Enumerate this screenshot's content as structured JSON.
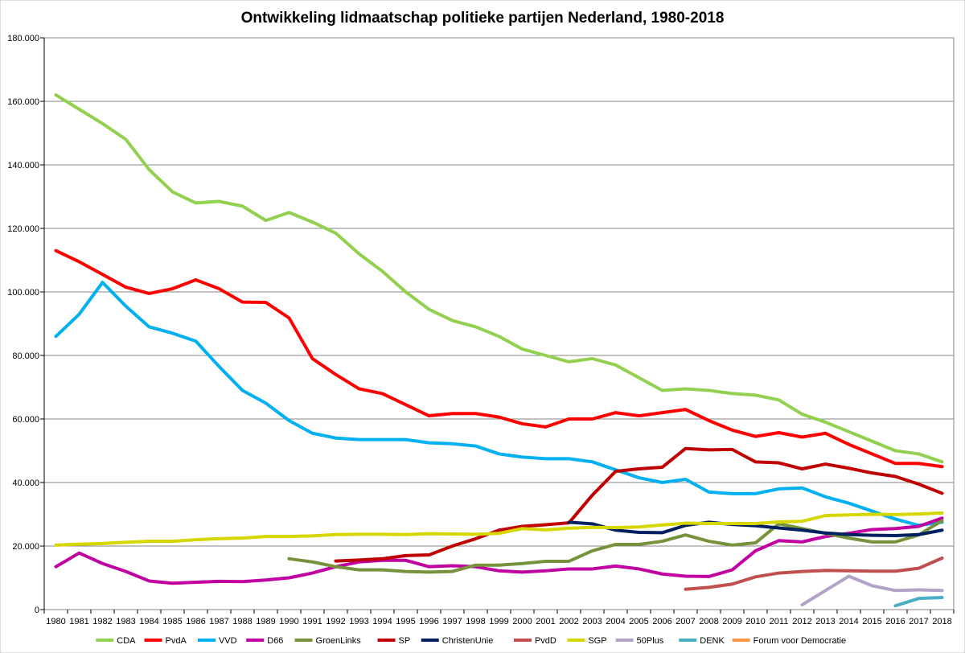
{
  "chart_data": {
    "type": "line",
    "title": "Ontwikkeling lidmaatschap politieke partijen Nederland, 1980-2018",
    "xlabel": "",
    "ylabel": "",
    "ylim": [
      0,
      180000
    ],
    "y_ticks": [
      0,
      20000,
      40000,
      60000,
      80000,
      100000,
      120000,
      140000,
      160000,
      180000
    ],
    "y_tick_labels": [
      "0",
      "20.000",
      "40.000",
      "60.000",
      "80.000",
      "100.000",
      "120.000",
      "140.000",
      "160.000",
      "180.000"
    ],
    "grid": true,
    "legend_position": "bottom",
    "x": [
      "1980",
      "1981",
      "1982",
      "1983",
      "1984",
      "1985",
      "1986",
      "1987",
      "1988",
      "1989",
      "1990",
      "1991",
      "1992",
      "1993",
      "1994",
      "1995",
      "1996",
      "1997",
      "1998",
      "1999",
      "2000",
      "2001",
      "2002",
      "2003",
      "2004",
      "2005",
      "2006",
      "2007",
      "2008",
      "2009",
      "2010",
      "2011",
      "2012",
      "2013",
      "2014",
      "2015",
      "2016",
      "2017",
      "2018"
    ],
    "series": [
      {
        "name": "CDA",
        "color": "#92D050",
        "values": [
          162000,
          157500,
          153000,
          148000,
          138500,
          131500,
          128000,
          128500,
          127000,
          122500,
          125000,
          122000,
          118500,
          112000,
          106500,
          100000,
          94500,
          91000,
          89000,
          86000,
          82000,
          80000,
          78000,
          79000,
          77000,
          73000,
          69000,
          69500,
          69000,
          68000,
          67500,
          66000,
          61500,
          59000,
          56000,
          53000,
          50000,
          49000,
          46500
        ]
      },
      {
        "name": "PvdA",
        "color": "#FF0000",
        "values": [
          113000,
          109500,
          105500,
          101500,
          99500,
          101000,
          103800,
          101000,
          96800,
          96700,
          91800,
          79000,
          74000,
          69500,
          68000,
          64500,
          61000,
          61700,
          61700,
          60600,
          58500,
          57500,
          60000,
          60000,
          62000,
          61000,
          62000,
          63000,
          59500,
          56500,
          54500,
          55700,
          54300,
          55500,
          52000,
          49000,
          46000,
          46000,
          45000
        ]
      },
      {
        "name": "VVD",
        "color": "#00B0F0",
        "values": [
          86000,
          93000,
          103000,
          95500,
          89000,
          87000,
          84500,
          76500,
          69000,
          65000,
          59500,
          55500,
          54000,
          53500,
          53500,
          53500,
          52500,
          52200,
          51500,
          49000,
          48000,
          47500,
          47500,
          46500,
          44000,
          41500,
          40000,
          41000,
          37000,
          36500,
          36500,
          38000,
          38300,
          35500,
          33500,
          31000,
          28500,
          26500,
          27500
        ]
      },
      {
        "name": "D66",
        "color": "#C000A0",
        "values": [
          13500,
          17800,
          14500,
          12000,
          9000,
          8300,
          8600,
          8900,
          8800,
          9300,
          10000,
          11500,
          13500,
          15000,
          15500,
          15500,
          13500,
          13800,
          13500,
          12200,
          11800,
          12200,
          12800,
          12800,
          13700,
          12800,
          11200,
          10500,
          10400,
          12500,
          18500,
          21700,
          21300,
          23000,
          24000,
          25200,
          25500,
          26200,
          28800
        ]
      },
      {
        "name": "GroenLinks",
        "color": "#76933C",
        "values": [
          null,
          null,
          null,
          null,
          null,
          null,
          null,
          null,
          null,
          null,
          16000,
          15000,
          13500,
          12500,
          12500,
          12000,
          11800,
          12000,
          14000,
          14000,
          14500,
          15200,
          15200,
          18500,
          20500,
          20500,
          21500,
          23500,
          21500,
          20300,
          21000,
          27000,
          25500,
          24000,
          22500,
          21300,
          21300,
          23500,
          28000
        ]
      },
      {
        "name": "SP",
        "color": "#C00000",
        "values": [
          null,
          null,
          null,
          null,
          null,
          null,
          null,
          null,
          null,
          null,
          null,
          null,
          15300,
          15600,
          16000,
          17000,
          17200,
          20000,
          22300,
          25000,
          26200,
          26700,
          27300,
          36000,
          43500,
          44300,
          44800,
          50700,
          50300,
          50400,
          46500,
          46200,
          44300,
          45800,
          44500,
          43000,
          41900,
          39500,
          36600
        ]
      },
      {
        "name": "ChristenUnie",
        "color": "#002060",
        "values": [
          null,
          null,
          null,
          null,
          null,
          null,
          null,
          null,
          null,
          null,
          null,
          null,
          null,
          null,
          null,
          null,
          null,
          null,
          null,
          null,
          null,
          null,
          27500,
          27000,
          25000,
          24300,
          24200,
          26500,
          27500,
          26800,
          26400,
          25700,
          25000,
          24100,
          23600,
          23400,
          23300,
          23600,
          25000
        ]
      },
      {
        "name": "PvdD",
        "color": "#C0504D",
        "values": [
          null,
          null,
          null,
          null,
          null,
          null,
          null,
          null,
          null,
          null,
          null,
          null,
          null,
          null,
          null,
          null,
          null,
          null,
          null,
          null,
          null,
          null,
          null,
          null,
          null,
          null,
          null,
          6400,
          7000,
          8000,
          10300,
          11500,
          12000,
          12300,
          12200,
          12100,
          12100,
          13000,
          16200
        ]
      },
      {
        "name": "SGP",
        "color": "#D6D600",
        "values": [
          20300,
          20600,
          20800,
          21200,
          21500,
          21500,
          22000,
          22300,
          22500,
          23000,
          23000,
          23200,
          23600,
          23700,
          23700,
          23600,
          23900,
          23800,
          23700,
          24000,
          25500,
          25100,
          25600,
          25900,
          25800,
          26000,
          26600,
          27200,
          27100,
          27100,
          27100,
          27600,
          27800,
          29600,
          29800,
          30000,
          29900,
          30100,
          30400
        ]
      },
      {
        "name": "50Plus",
        "color": "#B3A2C7",
        "values": [
          null,
          null,
          null,
          null,
          null,
          null,
          null,
          null,
          null,
          null,
          null,
          null,
          null,
          null,
          null,
          null,
          null,
          null,
          null,
          null,
          null,
          null,
          null,
          null,
          null,
          null,
          null,
          null,
          null,
          null,
          null,
          null,
          1500,
          6000,
          10500,
          7500,
          6000,
          6200,
          6000
        ]
      },
      {
        "name": "DENK",
        "color": "#4BACC6",
        "values": [
          null,
          null,
          null,
          null,
          null,
          null,
          null,
          null,
          null,
          null,
          null,
          null,
          null,
          null,
          null,
          null,
          null,
          null,
          null,
          null,
          null,
          null,
          null,
          null,
          null,
          null,
          null,
          null,
          null,
          null,
          null,
          null,
          null,
          null,
          null,
          null,
          1200,
          3500,
          3800
        ]
      },
      {
        "name": "Forum voor Democratie",
        "color": "#F79646",
        "values": [
          null,
          null,
          null,
          null,
          null,
          null,
          null,
          null,
          null,
          null,
          null,
          null,
          null,
          null,
          null,
          null,
          null,
          null,
          null,
          null,
          null,
          null,
          null,
          null,
          null,
          null,
          null,
          null,
          null,
          null,
          null,
          null,
          null,
          null,
          null,
          null,
          null,
          null,
          null
        ]
      }
    ]
  }
}
